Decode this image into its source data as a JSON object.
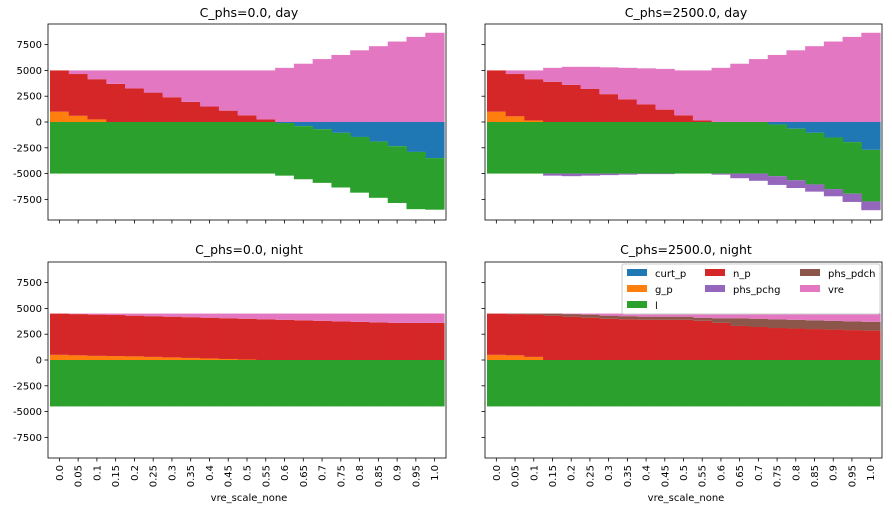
{
  "colors": {
    "curt_p": "#1f77b4",
    "g_p": "#ff7f0e",
    "l": "#2ca02c",
    "n_p": "#d62728",
    "phs_pchg": "#9467bd",
    "phs_pdch": "#8c564b",
    "vre": "#e377c2"
  },
  "chart_data": [
    {
      "type": "area",
      "title": "C_phs=0.0, day",
      "xlabel": "",
      "ylabel": "",
      "x": [
        0.0,
        0.05,
        0.1,
        0.15,
        0.2,
        0.25,
        0.3,
        0.35,
        0.4,
        0.45,
        0.5,
        0.55,
        0.6,
        0.65,
        0.7,
        0.75,
        0.8,
        0.85,
        0.9,
        0.95,
        1.0
      ],
      "ylim": [
        -9500,
        9500
      ],
      "yticks": [
        -7500,
        -5000,
        -2500,
        0,
        2500,
        5000,
        7500
      ],
      "series": [
        {
          "name": "curt_p",
          "values": [
            0,
            0,
            0,
            0,
            0,
            0,
            0,
            0,
            0,
            0,
            0,
            0,
            -100,
            -400,
            -700,
            -1050,
            -1450,
            -1900,
            -2350,
            -2900,
            -3500
          ]
        },
        {
          "name": "g_p",
          "values": [
            1000,
            600,
            250,
            0,
            0,
            0,
            0,
            0,
            0,
            0,
            0,
            0,
            0,
            0,
            0,
            0,
            0,
            0,
            0,
            0,
            0
          ]
        },
        {
          "name": "l",
          "values": [
            -5000,
            -5000,
            -5000,
            -5000,
            -5000,
            -5000,
            -5000,
            -5000,
            -5000,
            -5000,
            -5000,
            -5000,
            -5100,
            -5150,
            -5200,
            -5300,
            -5400,
            -5450,
            -5500,
            -5550,
            -5000
          ]
        },
        {
          "name": "n_p",
          "values": [
            4000,
            4050,
            3900,
            3700,
            3250,
            2850,
            2400,
            1950,
            1500,
            1100,
            650,
            250,
            0,
            0,
            0,
            0,
            0,
            0,
            0,
            0,
            0
          ]
        },
        {
          "name": "phs_pchg",
          "values": [
            0,
            0,
            0,
            0,
            0,
            0,
            0,
            0,
            0,
            0,
            0,
            0,
            0,
            0,
            0,
            0,
            0,
            0,
            0,
            0,
            0
          ]
        },
        {
          "name": "phs_pdch",
          "values": [
            0,
            0,
            0,
            0,
            0,
            0,
            0,
            0,
            0,
            0,
            0,
            0,
            0,
            0,
            0,
            0,
            0,
            0,
            0,
            0,
            0
          ]
        },
        {
          "name": "vre",
          "values": [
            0,
            350,
            850,
            1300,
            1750,
            2150,
            2600,
            3050,
            3500,
            3900,
            4350,
            4750,
            5250,
            5650,
            6100,
            6500,
            6950,
            7350,
            7800,
            8250,
            8650
          ]
        }
      ]
    },
    {
      "type": "area",
      "title": "C_phs=2500.0, day",
      "xlabel": "",
      "ylabel": "",
      "x": [
        0.0,
        0.05,
        0.1,
        0.15,
        0.2,
        0.25,
        0.3,
        0.35,
        0.4,
        0.45,
        0.5,
        0.55,
        0.6,
        0.65,
        0.7,
        0.75,
        0.8,
        0.85,
        0.9,
        0.95,
        1.0
      ],
      "ylim": [
        -9500,
        9500
      ],
      "yticks": [
        -7500,
        -5000,
        -2500,
        0,
        2500,
        5000,
        7500
      ],
      "series": [
        {
          "name": "curt_p",
          "values": [
            0,
            0,
            0,
            0,
            0,
            0,
            0,
            0,
            0,
            0,
            0,
            0,
            0,
            0,
            0,
            -250,
            -650,
            -1050,
            -1500,
            -1950,
            -2700
          ]
        },
        {
          "name": "g_p",
          "values": [
            1000,
            550,
            150,
            0,
            0,
            0,
            0,
            0,
            0,
            0,
            0,
            0,
            0,
            0,
            0,
            0,
            0,
            0,
            0,
            0,
            0
          ]
        },
        {
          "name": "l",
          "values": [
            -5000,
            -5000,
            -5000,
            -5000,
            -5000,
            -5000,
            -5000,
            -5000,
            -5000,
            -5000,
            -5000,
            -5000,
            -5000,
            -5000,
            -5000,
            -5000,
            -5000,
            -5000,
            -5000,
            -5000,
            -5000
          ]
        },
        {
          "name": "n_p",
          "values": [
            4000,
            4100,
            4000,
            3900,
            3600,
            3200,
            2700,
            2200,
            1700,
            1200,
            650,
            150,
            0,
            0,
            0,
            0,
            0,
            0,
            0,
            0,
            0
          ]
        },
        {
          "name": "phs_pchg",
          "values": [
            0,
            0,
            0,
            -200,
            -250,
            -200,
            -150,
            -100,
            -50,
            -50,
            0,
            0,
            -100,
            -450,
            -700,
            -850,
            -750,
            -700,
            -700,
            -800,
            -850
          ]
        },
        {
          "name": "phs_pdch",
          "values": [
            0,
            0,
            0,
            0,
            0,
            0,
            0,
            0,
            0,
            0,
            0,
            0,
            0,
            0,
            0,
            0,
            0,
            0,
            0,
            0,
            0
          ]
        },
        {
          "name": "vre",
          "values": [
            0,
            350,
            850,
            1350,
            1750,
            2150,
            2600,
            3050,
            3500,
            3950,
            4350,
            4850,
            5250,
            5650,
            6100,
            6500,
            6950,
            7350,
            7800,
            8250,
            8650
          ]
        }
      ]
    },
    {
      "type": "area",
      "title": "C_phs=0.0, night",
      "xlabel": "vre_scale_none",
      "ylabel": "",
      "x": [
        0.0,
        0.05,
        0.1,
        0.15,
        0.2,
        0.25,
        0.3,
        0.35,
        0.4,
        0.45,
        0.5,
        0.55,
        0.6,
        0.65,
        0.7,
        0.75,
        0.8,
        0.85,
        0.9,
        0.95,
        1.0
      ],
      "xticklabels": [
        "0.0",
        "0.05",
        "0.1",
        "0.15",
        "0.2",
        "0.25",
        "0.3",
        "0.35",
        "0.4",
        "0.45",
        "0.5",
        "0.55",
        "0.6",
        "0.65",
        "0.7",
        "0.75",
        "0.8",
        "0.85",
        "0.9",
        "0.95",
        "1.0"
      ],
      "ylim": [
        -9500,
        9500
      ],
      "yticks": [
        -7500,
        -5000,
        -2500,
        0,
        2500,
        5000,
        7500
      ],
      "series": [
        {
          "name": "curt_p",
          "values": [
            0,
            0,
            0,
            0,
            0,
            0,
            0,
            0,
            0,
            0,
            0,
            0,
            0,
            0,
            0,
            0,
            0,
            0,
            0,
            0,
            0
          ]
        },
        {
          "name": "g_p",
          "values": [
            500,
            450,
            400,
            380,
            350,
            300,
            250,
            200,
            150,
            100,
            50,
            0,
            0,
            0,
            0,
            0,
            0,
            0,
            0,
            0,
            0
          ]
        },
        {
          "name": "l",
          "values": [
            -4500,
            -4500,
            -4500,
            -4500,
            -4500,
            -4500,
            -4500,
            -4500,
            -4500,
            -4500,
            -4500,
            -4500,
            -4500,
            -4500,
            -4500,
            -4500,
            -4500,
            -4500,
            -4500,
            -4500,
            -4500
          ]
        },
        {
          "name": "n_p",
          "values": [
            4000,
            4000,
            4000,
            3980,
            3950,
            3950,
            3950,
            3950,
            3950,
            3950,
            3950,
            3950,
            3900,
            3850,
            3800,
            3750,
            3700,
            3650,
            3600,
            3600,
            3600
          ]
        },
        {
          "name": "phs_pchg",
          "values": [
            0,
            0,
            0,
            0,
            0,
            0,
            0,
            0,
            0,
            0,
            0,
            0,
            0,
            0,
            0,
            0,
            0,
            0,
            0,
            0,
            0
          ]
        },
        {
          "name": "phs_pdch",
          "values": [
            0,
            0,
            0,
            0,
            0,
            0,
            0,
            0,
            0,
            0,
            0,
            0,
            0,
            0,
            0,
            0,
            0,
            0,
            0,
            0,
            0
          ]
        },
        {
          "name": "vre",
          "values": [
            0,
            50,
            100,
            140,
            200,
            250,
            300,
            350,
            400,
            450,
            500,
            550,
            600,
            650,
            700,
            750,
            800,
            850,
            900,
            900,
            900
          ]
        }
      ]
    },
    {
      "type": "area",
      "title": "C_phs=2500.0, night",
      "xlabel": "vre_scale_none",
      "ylabel": "",
      "x": [
        0.0,
        0.05,
        0.1,
        0.15,
        0.2,
        0.25,
        0.3,
        0.35,
        0.4,
        0.45,
        0.5,
        0.55,
        0.6,
        0.65,
        0.7,
        0.75,
        0.8,
        0.85,
        0.9,
        0.95,
        1.0
      ],
      "xticklabels": [
        "0.0",
        "0.05",
        "0.1",
        "0.15",
        "0.2",
        "0.25",
        "0.3",
        "0.35",
        "0.4",
        "0.45",
        "0.5",
        "0.55",
        "0.6",
        "0.65",
        "0.7",
        "0.75",
        "0.8",
        "0.85",
        "0.9",
        "0.95",
        "1.0"
      ],
      "ylim": [
        -9500,
        9500
      ],
      "yticks": [
        -7500,
        -5000,
        -2500,
        0,
        2500,
        5000,
        7500
      ],
      "series": [
        {
          "name": "curt_p",
          "values": [
            0,
            0,
            0,
            0,
            0,
            0,
            0,
            0,
            0,
            0,
            0,
            0,
            0,
            0,
            0,
            0,
            0,
            0,
            0,
            0,
            0
          ]
        },
        {
          "name": "g_p",
          "values": [
            500,
            450,
            300,
            0,
            0,
            0,
            0,
            0,
            0,
            0,
            0,
            0,
            0,
            0,
            0,
            0,
            0,
            0,
            0,
            0,
            0
          ]
        },
        {
          "name": "l",
          "values": [
            -4500,
            -4500,
            -4500,
            -4500,
            -4500,
            -4500,
            -4500,
            -4500,
            -4500,
            -4500,
            -4500,
            -4500,
            -4500,
            -4500,
            -4500,
            -4500,
            -4500,
            -4500,
            -4500,
            -4500,
            -4500
          ]
        },
        {
          "name": "n_p",
          "values": [
            4000,
            4000,
            4100,
            4300,
            4200,
            4100,
            4000,
            3950,
            3900,
            3900,
            3900,
            3800,
            3600,
            3300,
            3200,
            3100,
            3050,
            3000,
            2950,
            2900,
            2850
          ]
        },
        {
          "name": "phs_pchg",
          "values": [
            0,
            0,
            0,
            0,
            0,
            0,
            0,
            0,
            0,
            0,
            0,
            0,
            0,
            0,
            0,
            0,
            0,
            0,
            0,
            0,
            0
          ]
        },
        {
          "name": "phs_pdch",
          "values": [
            0,
            50,
            100,
            200,
            250,
            300,
            300,
            300,
            300,
            300,
            300,
            300,
            450,
            750,
            800,
            850,
            850,
            850,
            850,
            850,
            850
          ]
        },
        {
          "name": "vre",
          "values": [
            0,
            0,
            0,
            0,
            50,
            100,
            200,
            250,
            300,
            300,
            300,
            400,
            450,
            450,
            500,
            550,
            600,
            650,
            700,
            750,
            800
          ]
        }
      ]
    }
  ],
  "legend": {
    "location": "upper right",
    "entries": [
      "curt_p",
      "g_p",
      "l",
      "n_p",
      "phs_pchg",
      "phs_pdch",
      "vre"
    ]
  }
}
